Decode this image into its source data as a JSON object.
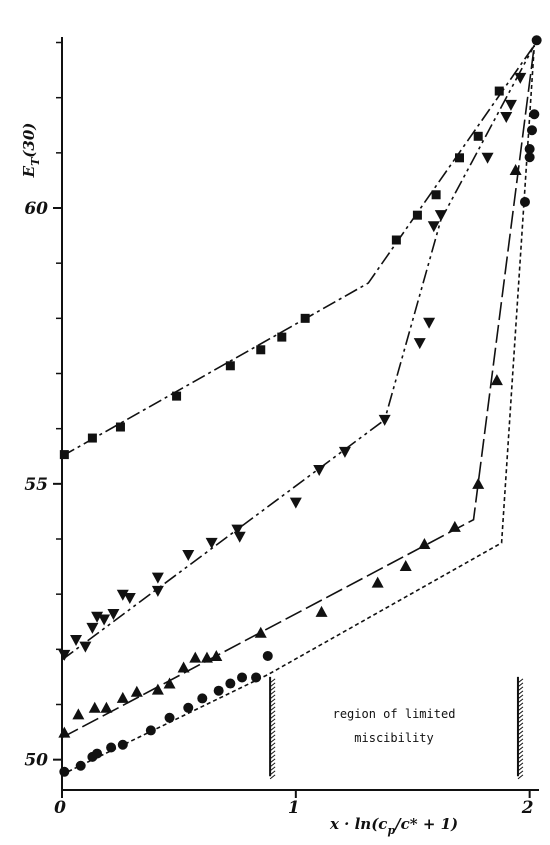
{
  "chart_data": {
    "type": "scatter",
    "ylabel": {
      "main": "E",
      "sub": "T",
      "rest": "(30)"
    },
    "xlabel": {
      "main": "x · ln(c",
      "sub": "p",
      "rest": "/c* + 1)"
    },
    "xlim": [
      0,
      2.04
    ],
    "ylim": [
      49.45,
      63.1
    ],
    "xticks": [
      0,
      1,
      2
    ],
    "yticks": [
      50,
      55,
      60
    ],
    "yticks_minor": [
      51,
      52,
      53,
      54,
      56,
      57,
      58,
      59,
      61,
      62,
      63
    ],
    "annotation": {
      "lines": [
        "region of limited",
        "miscibility"
      ],
      "region_x": [
        0.89,
        1.95
      ],
      "region_y": [
        49.7,
        51.5
      ]
    },
    "series": [
      {
        "marker": "square",
        "color": "#111111",
        "dash": "14 4 3 4",
        "x": [
          0.01,
          0.13,
          0.25,
          0.49,
          0.72,
          0.85,
          0.94,
          1.04,
          1.43,
          1.52,
          1.6,
          1.7,
          1.78,
          1.87
        ],
        "values": [
          55.53,
          55.83,
          56.03,
          56.59,
          57.14,
          57.43,
          57.66,
          58.0,
          59.42,
          59.87,
          60.24,
          60.91,
          61.3,
          62.12
        ],
        "fit": {
          "x": [
            0,
            1.31,
            2.02
          ],
          "y": [
            55.5,
            58.64,
            62.95
          ]
        }
      },
      {
        "marker": "triangle-down",
        "color": "#111111",
        "dash": "14 4 3 4 3 4",
        "x": [
          0.01,
          0.06,
          0.1,
          0.13,
          0.15,
          0.18,
          0.22,
          0.26,
          0.29,
          0.41,
          0.41,
          0.54,
          0.64,
          0.75,
          0.76,
          1.0,
          1.1,
          1.21,
          1.38,
          1.53,
          1.57,
          1.59,
          1.62,
          1.82,
          1.9,
          1.92,
          1.96
        ],
        "values": [
          51.9,
          52.17,
          52.05,
          52.39,
          52.59,
          52.54,
          52.64,
          52.99,
          52.93,
          53.3,
          53.06,
          53.71,
          53.93,
          54.17,
          54.04,
          54.66,
          55.25,
          55.58,
          56.16,
          57.55,
          57.92,
          59.67,
          59.87,
          60.91,
          61.65,
          61.87,
          62.36
        ],
        "fit": {
          "x": [
            0,
            1.38,
            1.62,
            2.02
          ],
          "y": [
            51.81,
            56.16,
            59.78,
            62.95
          ]
        }
      },
      {
        "marker": "triangle-up",
        "color": "#111111",
        "dash": "18 5",
        "x": [
          0.01,
          0.07,
          0.14,
          0.19,
          0.26,
          0.32,
          0.41,
          0.46,
          0.52,
          0.57,
          0.62,
          0.66,
          0.85,
          1.11,
          1.35,
          1.47,
          1.55,
          1.68,
          1.78,
          1.86,
          1.94
        ],
        "values": [
          50.49,
          50.82,
          50.94,
          50.94,
          51.12,
          51.23,
          51.27,
          51.38,
          51.67,
          51.85,
          51.85,
          51.88,
          52.3,
          52.68,
          53.21,
          53.51,
          53.91,
          54.22,
          55.0,
          56.88,
          60.69
        ],
        "fit": {
          "x": [
            0,
            1.76,
            2.02
          ],
          "y": [
            50.4,
            54.35,
            62.95
          ]
        }
      },
      {
        "marker": "circle",
        "color": "#111111",
        "dash": "4 3",
        "x": [
          0.01,
          0.08,
          0.13,
          0.15,
          0.21,
          0.26,
          0.38,
          0.46,
          0.54,
          0.6,
          0.67,
          0.72,
          0.77,
          0.83,
          0.88,
          1.98,
          2.0,
          2.0,
          2.01,
          2.02,
          2.03
        ],
        "values": [
          49.78,
          49.89,
          50.05,
          50.11,
          50.22,
          50.27,
          50.53,
          50.76,
          50.94,
          51.11,
          51.25,
          51.38,
          51.49,
          51.49,
          51.88,
          60.11,
          60.92,
          61.07,
          61.41,
          61.7,
          63.04
        ],
        "fit": {
          "x": [
            0,
            0.88,
            1.88,
            2.02
          ],
          "y": [
            49.73,
            51.54,
            53.93,
            62.95
          ]
        }
      }
    ]
  }
}
